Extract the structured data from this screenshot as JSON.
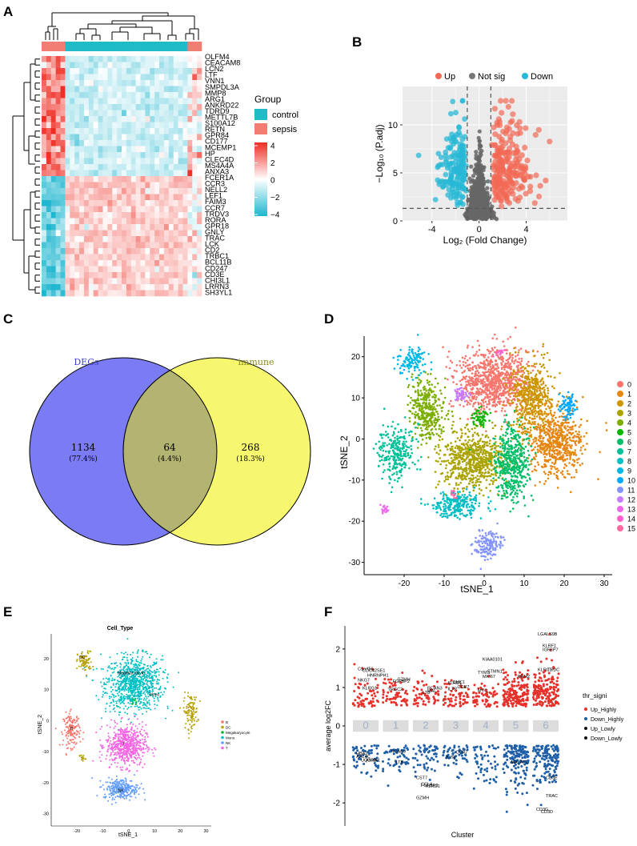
{
  "panels": {
    "A": {
      "letter": "A",
      "genes_up": [
        "OLFM4",
        "CEACAM8",
        "LCN2",
        "LTF",
        "VNN1",
        "SMPDL3A",
        "MMP8",
        "ARG1",
        "ANKRD22",
        "TDRD9",
        "METTL7B",
        "S100A12",
        "RETN",
        "GPR84",
        "CD177",
        "MCEMP1",
        "HP",
        "CLEC4D",
        "MS4A4A",
        "ANXA3"
      ],
      "genes_down": [
        "FCER1A",
        "CCR3",
        "NELL2",
        "LEF1",
        "FAIM3",
        "CCR7",
        "TRDV3",
        "RORA",
        "GPR18",
        "GNLY",
        "TRAC",
        "LCK",
        "CD2",
        "TRBC1",
        "BCL11B",
        "CD247",
        "CD3E",
        "CHI3L1",
        "LRRN3",
        "SH3YL1"
      ],
      "legend_title": "Group",
      "groups": [
        "control",
        "sepsis"
      ],
      "colorbar_ticks": [
        "4",
        "2",
        "0",
        "−2",
        "−4"
      ],
      "colors": {
        "control": "#1fbcc8",
        "sepsis": "#f27e73",
        "high": "#ee3b2e",
        "low": "#1fb1cc",
        "mid": "#ffffff"
      }
    },
    "B": {
      "letter": "B",
      "legend": [
        "Up",
        "Not sig",
        "Down"
      ],
      "legend_colors": [
        "#f26a55",
        "#777777",
        "#27b8d6"
      ],
      "xlabel": "Log₂ (Fold Change)",
      "ylabel": "−Log₁₀ (P.adj)",
      "xticks": [
        "-4",
        "0",
        "4"
      ],
      "yticks": [
        "0",
        "5",
        "10"
      ],
      "xlim": [
        -6.5,
        7.5
      ],
      "ylim": [
        0,
        14
      ]
    },
    "C": {
      "letter": "C",
      "sets": [
        {
          "name": "DEGs",
          "count": "1134",
          "pct": "(77.4%)",
          "color": "#7b7bf3"
        },
        {
          "name": "immune",
          "count": "268",
          "pct": "(18.3%)",
          "color": "#f7f76f"
        }
      ],
      "overlap": {
        "count": "64",
        "pct": "(4.4%)",
        "color": "#b3b471"
      }
    },
    "D": {
      "letter": "D",
      "xlabel": "tSNE_1",
      "ylabel": "tSNE_2",
      "xticks": [
        "-20",
        "-10",
        "0",
        "10",
        "20",
        "30"
      ],
      "yticks": [
        "20",
        "10",
        "0",
        "-10",
        "-20",
        "-30"
      ],
      "clusters": [
        "0",
        "1",
        "2",
        "3",
        "4",
        "5",
        "6",
        "7",
        "8",
        "9",
        "10",
        "11",
        "12",
        "13",
        "14",
        "15"
      ],
      "cluster_colors": [
        "#f8766d",
        "#e68613",
        "#cd9600",
        "#aba300",
        "#7cae00",
        "#0cb702",
        "#00be67",
        "#00c19a",
        "#00bfc4",
        "#00b8e7",
        "#00a9ff",
        "#8494ff",
        "#c77cff",
        "#ed68ed",
        "#ff61cc",
        "#ff68a1"
      ]
    },
    "E": {
      "letter": "E",
      "title": "Cell_Type",
      "xlabel": "tSNE_1",
      "ylabel": "tSNE_2",
      "xticks": [
        "-20",
        "-10",
        "0",
        "10",
        "20",
        "30"
      ],
      "yticks": [
        "20",
        "10",
        "0",
        "-10",
        "-20",
        "-30"
      ],
      "cell_types": [
        "B",
        "DC",
        "Megakaryocyte",
        "Mono",
        "NK",
        "T"
      ],
      "cell_colors": [
        "#f8766d",
        "#b79f00",
        "#00ba38",
        "#00bfc4",
        "#619cff",
        "#f564e3"
      ],
      "cluster_labels": [
        "DC",
        "Megakaryocyte",
        "Mono",
        "B",
        "T",
        "NK"
      ]
    },
    "F": {
      "letter": "F",
      "xlabel": "Cluster",
      "ylabel": "average log2FC",
      "yticks": [
        "2",
        "1",
        "0",
        "-1",
        "-2"
      ],
      "clusters": [
        "0",
        "1",
        "2",
        "3",
        "4",
        "5",
        "6"
      ],
      "legend_title": "thr_signi",
      "legend": [
        "Up_Highly",
        "Down_Highly",
        "Up_Lowly",
        "Down_Lowly"
      ],
      "legend_colors": [
        "#e8302a",
        "#1f5fa8",
        "#111111",
        "#111111"
      ],
      "gene_labels_up": [
        "C1orf56",
        "CDC42SE1",
        "HNRNPH1",
        "NKG7",
        "KLRG1",
        "GZMH",
        "TRGC2",
        "FGFBP2",
        "RCAN3",
        "KLRD1",
        "CMC1",
        "CCR7",
        "IL7R",
        "LTB",
        "MAL",
        "MYC",
        "KIAA0101",
        "STMN1",
        "TYMS",
        "MKI67",
        "RRM2",
        "LGALS9B",
        "KLRF1",
        "TRDC",
        "KLRC1",
        "IGFBP7"
      ],
      "gene_labels_down": [
        "HBA2",
        "UQCRB",
        "ANXA1",
        "ARL4C",
        "RCAN3",
        "LTB",
        "CST7",
        "CCL4",
        "KLRD1",
        "GZMH",
        "FGFBP2",
        "CCR7",
        "IL7R",
        "MALAT1",
        "CD3E",
        "CD3G",
        "CD3D",
        "TRAC"
      ]
    }
  }
}
